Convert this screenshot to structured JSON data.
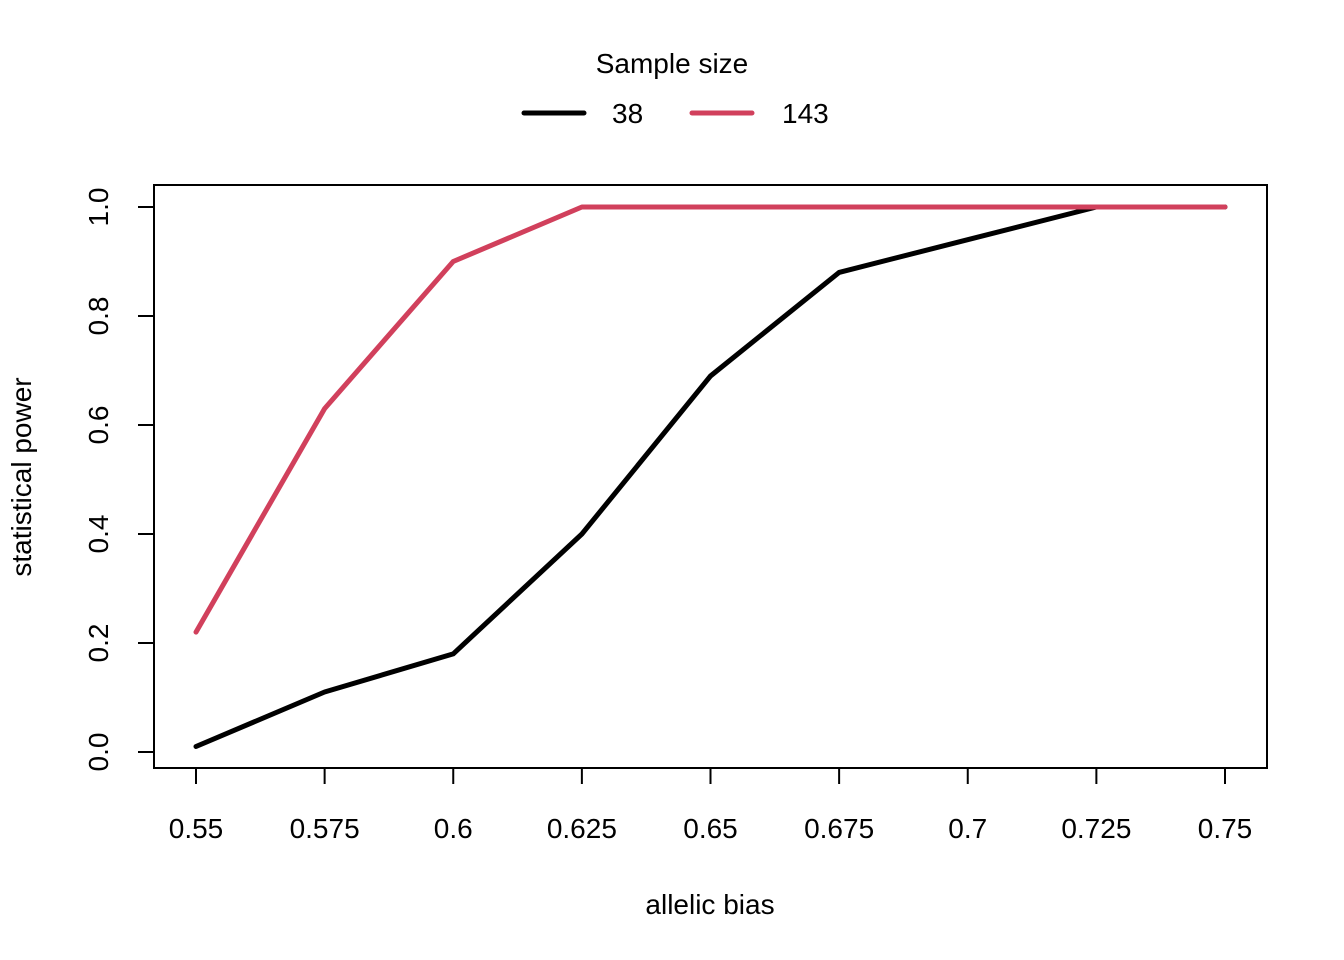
{
  "chart_data": {
    "type": "line",
    "title": "",
    "xlabel": "allelic bias",
    "ylabel": "statistical power",
    "x": [
      0.55,
      0.575,
      0.6,
      0.625,
      0.65,
      0.675,
      0.7,
      0.725,
      0.75
    ],
    "x_tick_labels": [
      "0.55",
      "0.575",
      "0.6",
      "0.625",
      "0.65",
      "0.675",
      "0.7",
      "0.725",
      "0.75"
    ],
    "y_ticks": [
      0.0,
      0.2,
      0.4,
      0.6,
      0.8,
      1.0
    ],
    "y_tick_labels": [
      "0.0",
      "0.2",
      "0.4",
      "0.6",
      "0.8",
      "1.0"
    ],
    "xlim": [
      0.55,
      0.75
    ],
    "ylim": [
      0.0,
      1.0
    ],
    "grid": false,
    "legend": {
      "title": "Sample size",
      "placement": "top-center",
      "entries": [
        "38",
        "143"
      ]
    },
    "series": [
      {
        "name": "38",
        "color": "#000000",
        "values": [
          0.01,
          0.11,
          0.18,
          0.4,
          0.69,
          0.88,
          0.94,
          1.0,
          1.0
        ]
      },
      {
        "name": "143",
        "color": "#D1405C",
        "values": [
          0.22,
          0.63,
          0.9,
          1.0,
          1.0,
          1.0,
          1.0,
          1.0,
          1.0
        ]
      }
    ]
  }
}
